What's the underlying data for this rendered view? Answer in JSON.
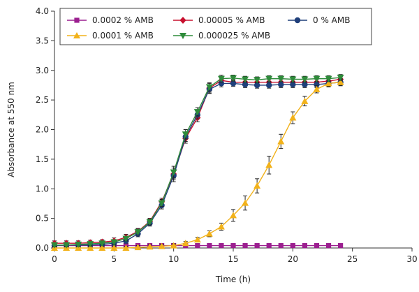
{
  "chart_data": {
    "type": "line",
    "xlabel": "Time (h)",
    "ylabel": "Absorbance at 550 nm",
    "xlim": [
      0,
      30
    ],
    "ylim": [
      0,
      4
    ],
    "x_ticks": [
      0,
      5,
      10,
      15,
      20,
      25,
      30
    ],
    "x_tick_labels": [
      "0",
      "5",
      "10",
      "15",
      "20",
      "25",
      "30"
    ],
    "y_ticks": [
      0,
      0.5,
      1,
      1.5,
      2,
      2.5,
      3,
      3.5,
      4
    ],
    "y_tick_labels": [
      "0.0",
      "0.5",
      "1.0",
      "1.5",
      "2.0",
      "2.5",
      "3.0",
      "3.5",
      "4.0"
    ],
    "grid": false,
    "legend_position": "top",
    "x": [
      0,
      1,
      2,
      3,
      4,
      5,
      6,
      7,
      8,
      9,
      10,
      11,
      12,
      13,
      14,
      15,
      16,
      17,
      18,
      19,
      20,
      21,
      22,
      23,
      24
    ],
    "series": [
      {
        "name": "0.0002 % AMB",
        "color": "#9b1f8f",
        "marker": "square",
        "values": [
          0.04,
          0.04,
          0.04,
          0.04,
          0.04,
          0.04,
          0.04,
          0.04,
          0.04,
          0.04,
          0.04,
          0.04,
          0.04,
          0.04,
          0.04,
          0.04,
          0.04,
          0.04,
          0.04,
          0.04,
          0.04,
          0.04,
          0.04,
          0.04,
          0.04
        ],
        "errors": [
          0.01,
          0.01,
          0.01,
          0.01,
          0.01,
          0.01,
          0.01,
          0.01,
          0.01,
          0.01,
          0.01,
          0.01,
          0.01,
          0.01,
          0.01,
          0.01,
          0.01,
          0.01,
          0.01,
          0.01,
          0.01,
          0.01,
          0.01,
          0.01,
          0.01
        ]
      },
      {
        "name": "0.00005 % AMB",
        "color": "#c8102e",
        "marker": "diamond",
        "values": [
          0.08,
          0.08,
          0.08,
          0.09,
          0.1,
          0.12,
          0.18,
          0.28,
          0.45,
          0.78,
          1.25,
          1.85,
          2.2,
          2.7,
          2.83,
          2.8,
          2.8,
          2.8,
          2.8,
          2.8,
          2.8,
          2.8,
          2.8,
          2.82,
          2.85
        ],
        "errors": [
          0.04,
          0.04,
          0.04,
          0.04,
          0.04,
          0.05,
          0.05,
          0.05,
          0.05,
          0.06,
          0.1,
          0.08,
          0.07,
          0.08,
          0.06,
          0.05,
          0.05,
          0.05,
          0.05,
          0.05,
          0.05,
          0.05,
          0.05,
          0.05,
          0.05
        ]
      },
      {
        "name": "0 % AMB",
        "color": "#1f3f7a",
        "marker": "circle",
        "values": [
          0.04,
          0.05,
          0.05,
          0.05,
          0.06,
          0.08,
          0.12,
          0.24,
          0.42,
          0.72,
          1.22,
          1.88,
          2.25,
          2.68,
          2.78,
          2.78,
          2.76,
          2.75,
          2.75,
          2.76,
          2.76,
          2.76,
          2.76,
          2.78,
          2.8
        ],
        "errors": [
          0.03,
          0.03,
          0.03,
          0.03,
          0.03,
          0.04,
          0.04,
          0.05,
          0.05,
          0.06,
          0.1,
          0.08,
          0.07,
          0.07,
          0.06,
          0.05,
          0.05,
          0.05,
          0.05,
          0.05,
          0.05,
          0.05,
          0.05,
          0.05,
          0.05
        ]
      },
      {
        "name": "0.0001 % AMB",
        "color": "#f2b21a",
        "marker": "triangle-up",
        "values": [
          0.0,
          0.0,
          0.0,
          0.0,
          0.0,
          0.0,
          0.0,
          0.01,
          0.02,
          0.03,
          0.04,
          0.08,
          0.14,
          0.24,
          0.36,
          0.55,
          0.76,
          1.05,
          1.4,
          1.8,
          2.2,
          2.48,
          2.68,
          2.78,
          2.8
        ],
        "errors": [
          0.03,
          0.03,
          0.03,
          0.03,
          0.03,
          0.03,
          0.03,
          0.03,
          0.03,
          0.03,
          0.03,
          0.03,
          0.04,
          0.05,
          0.06,
          0.1,
          0.12,
          0.12,
          0.15,
          0.12,
          0.1,
          0.08,
          0.06,
          0.06,
          0.06
        ]
      },
      {
        "name": "0.000025 % AMB",
        "color": "#2e8b3a",
        "marker": "triangle-down",
        "values": [
          0.05,
          0.05,
          0.06,
          0.07,
          0.08,
          0.1,
          0.16,
          0.27,
          0.44,
          0.76,
          1.28,
          1.92,
          2.3,
          2.72,
          2.86,
          2.87,
          2.85,
          2.84,
          2.86,
          2.86,
          2.85,
          2.85,
          2.86,
          2.86,
          2.88
        ],
        "errors": [
          0.03,
          0.03,
          0.03,
          0.03,
          0.03,
          0.04,
          0.04,
          0.05,
          0.05,
          0.06,
          0.1,
          0.08,
          0.07,
          0.07,
          0.06,
          0.05,
          0.05,
          0.05,
          0.05,
          0.05,
          0.05,
          0.05,
          0.05,
          0.05,
          0.05
        ]
      }
    ]
  }
}
